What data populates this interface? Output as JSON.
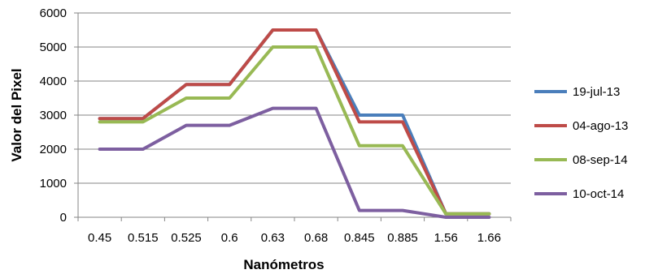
{
  "chart_data": {
    "type": "line",
    "title": "",
    "xlabel": "Nanómetros",
    "ylabel": "Valor del Pixel",
    "categories": [
      "0.45",
      "0.515",
      "0.525",
      "0.6",
      "0.63",
      "0.68",
      "0.845",
      "0.885",
      "1.56",
      "1.66"
    ],
    "ylim": [
      0,
      6000
    ],
    "yticks": [
      "0",
      "1000",
      "2000",
      "3000",
      "4000",
      "5000",
      "6000"
    ],
    "grid": true,
    "legend_position": "right",
    "series": [
      {
        "name": "19-jul-13",
        "color": "#4a7ebb",
        "values": [
          2900,
          2900,
          3900,
          3900,
          5500,
          5500,
          3000,
          3000,
          100,
          100
        ]
      },
      {
        "name": "04-ago-13",
        "color": "#be4b48",
        "values": [
          2900,
          2900,
          3900,
          3900,
          5500,
          5500,
          2800,
          2800,
          100,
          100
        ]
      },
      {
        "name": "08-sep-14",
        "color": "#98b954",
        "values": [
          2800,
          2800,
          3500,
          3500,
          5000,
          5000,
          2100,
          2100,
          100,
          100
        ]
      },
      {
        "name": "10-oct-14",
        "color": "#7d5fa0",
        "values": [
          2000,
          2000,
          2700,
          2700,
          3200,
          3200,
          200,
          200,
          0,
          0
        ]
      }
    ]
  }
}
